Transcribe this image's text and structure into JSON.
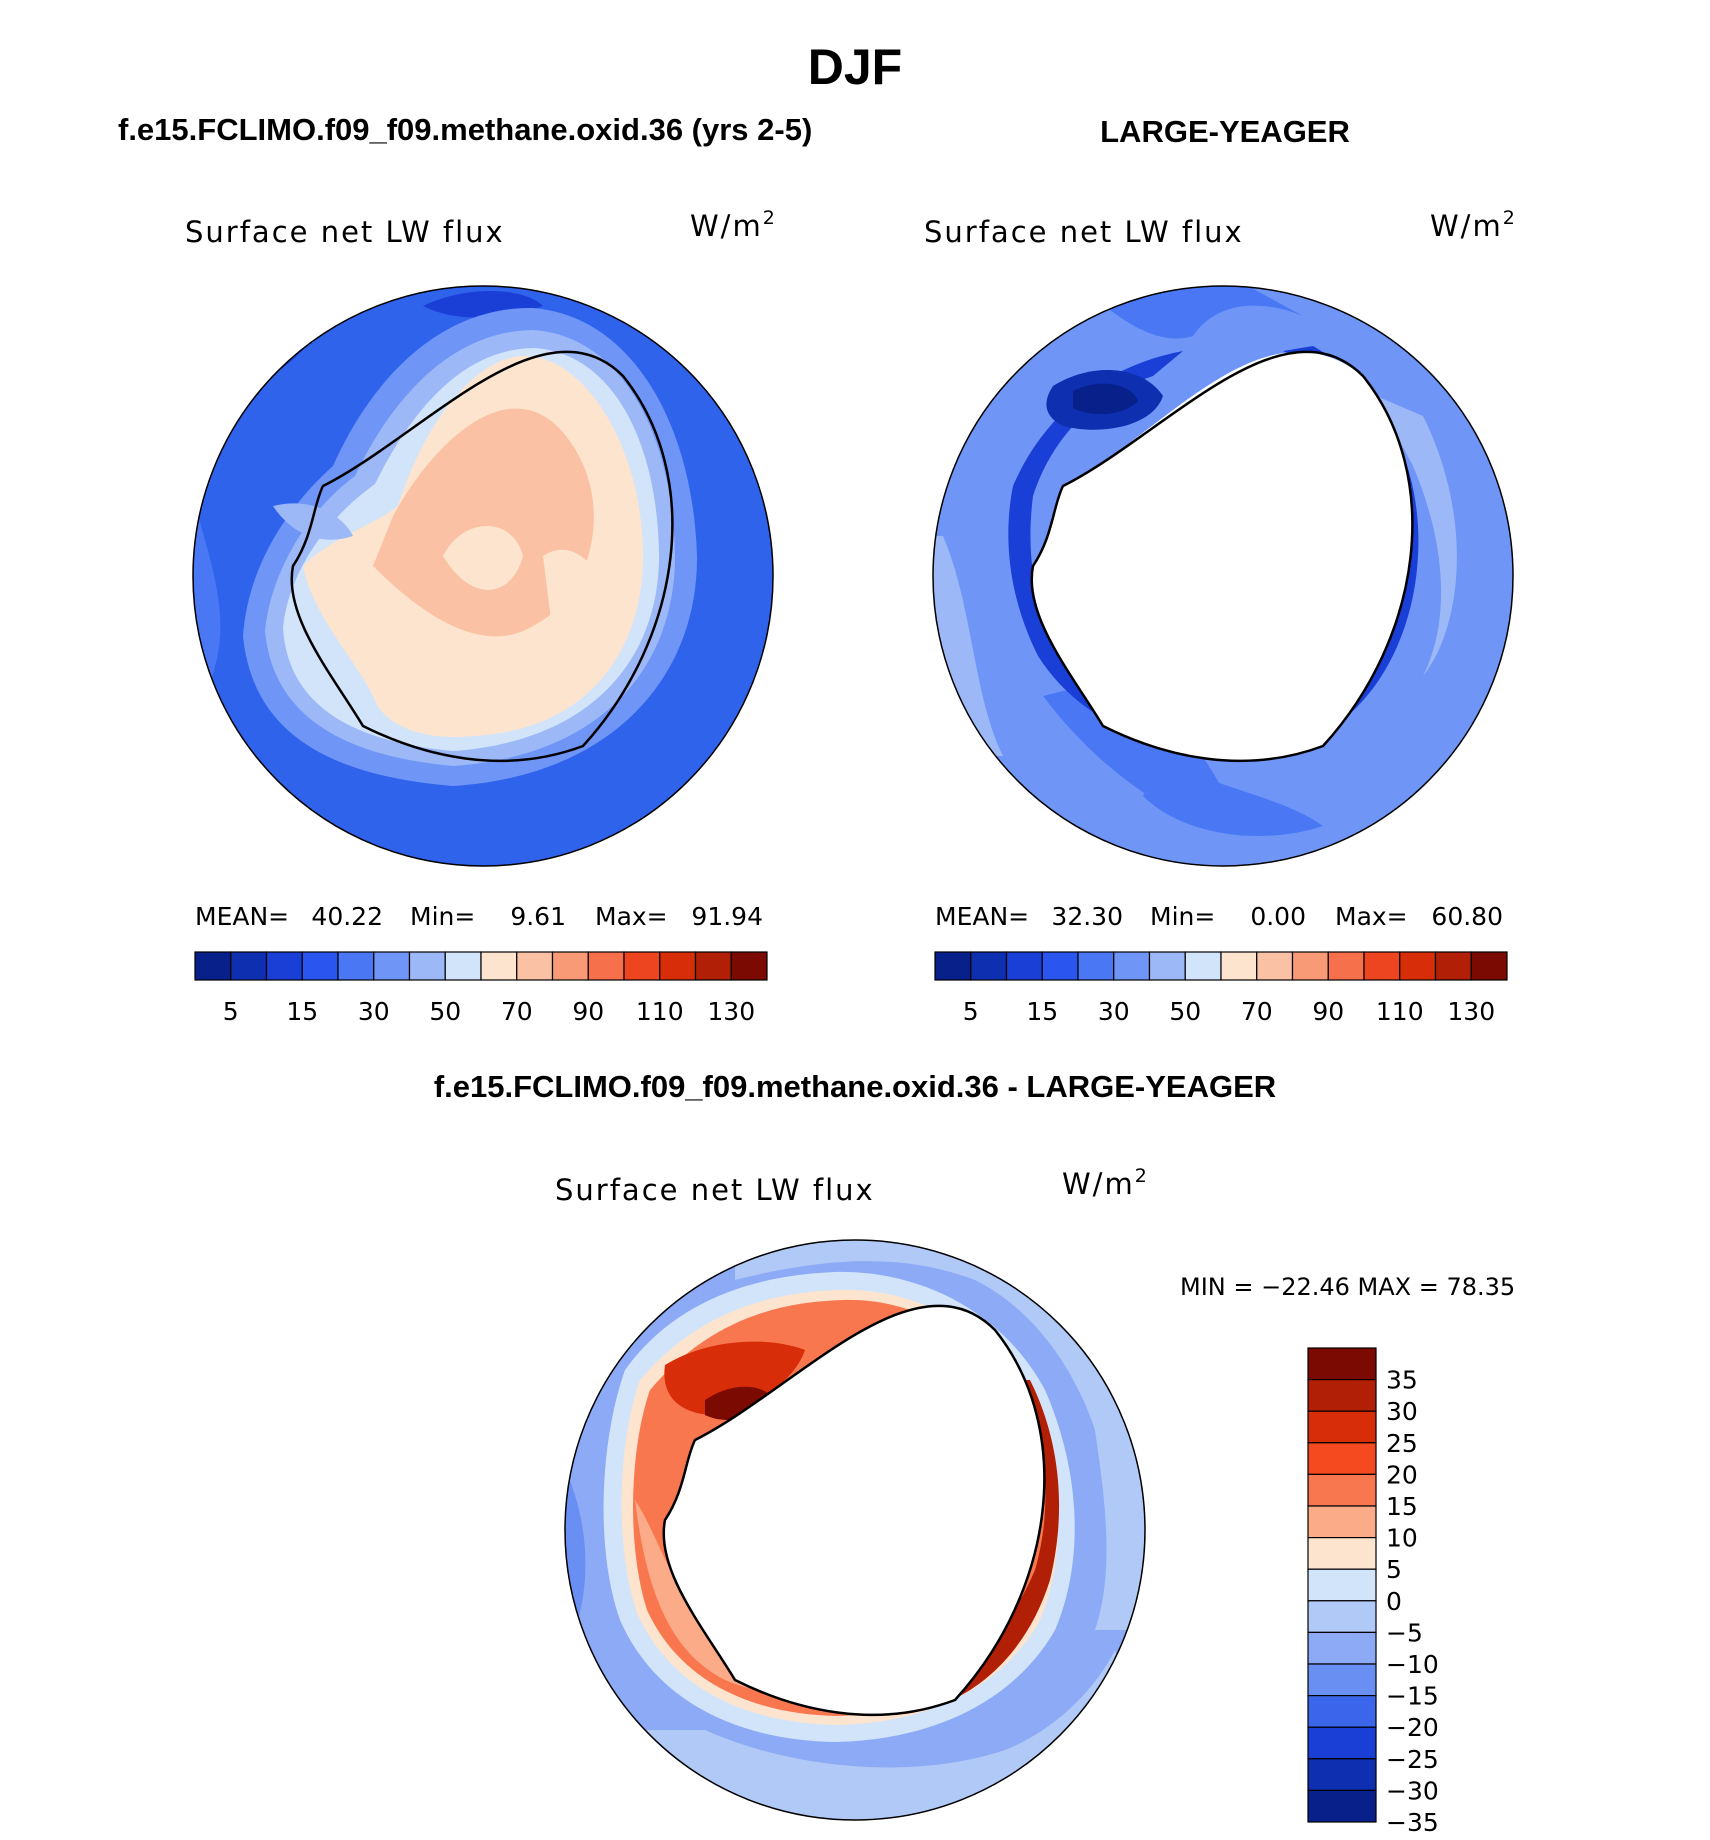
{
  "figure": {
    "season": "DJF",
    "case_title": "f.e15.FCLIMO.f09_f09.methane.oxid.36 (yrs 2-5)",
    "obs_title": "LARGE-YEAGER",
    "diff_title": "f.e15.FCLIMO.f09_f09.methane.oxid.36 - LARGE-YEAGER"
  },
  "panels": {
    "case": {
      "variable": "Surface net LW flux",
      "units": "W/m",
      "units_sup": "2",
      "stats": {
        "mean_label": "MEAN=",
        "mean": "40.22",
        "min_label": "Min=",
        "min": "9.61",
        "max_label": "Max=",
        "max": "91.94"
      }
    },
    "obs": {
      "variable": "Surface net LW flux",
      "units": "W/m",
      "units_sup": "2",
      "stats": {
        "mean_label": "MEAN=",
        "mean": "32.30",
        "min_label": "Min=",
        "min": "0.00",
        "max_label": "Max=",
        "max": "60.80"
      }
    },
    "diff": {
      "variable": "Surface net LW flux",
      "units": "W/m",
      "units_sup": "2",
      "minmax": "MIN = −22.46 MAX =   78.35"
    }
  },
  "chart_data": [
    {
      "type": "heatmap",
      "title": "f.e15.FCLIMO.f09_f09.methane.oxid.36 (yrs 2-5)",
      "subtitle": "Surface net LW flux",
      "units": "W/m2",
      "projection": "south polar stereographic",
      "mean": 40.22,
      "min": 9.61,
      "max": 91.94,
      "colorbar_labels": [
        "5",
        "15",
        "30",
        "50",
        "70",
        "90",
        "110",
        "130"
      ],
      "colorbar_colors": [
        "#08208a",
        "#0d2fb0",
        "#1a3fd6",
        "#2a56ef",
        "#4a78f5",
        "#6f96f7",
        "#9cb8f7",
        "#d2e4fa",
        "#fde4cf",
        "#fbc1a4",
        "#f99a76",
        "#f5704b",
        "#ee4521",
        "#d72d09",
        "#b11f06",
        "#7a0a02"
      ]
    },
    {
      "type": "heatmap",
      "title": "LARGE-YEAGER",
      "subtitle": "Surface net LW flux",
      "units": "W/m2",
      "projection": "south polar stereographic",
      "mean": 32.3,
      "min": 0.0,
      "max": 60.8,
      "colorbar_labels": [
        "5",
        "15",
        "30",
        "50",
        "70",
        "90",
        "110",
        "130"
      ],
      "colorbar_colors": [
        "#08208a",
        "#0d2fb0",
        "#1a3fd6",
        "#2a56ef",
        "#4a78f5",
        "#6f96f7",
        "#9cb8f7",
        "#d2e4fa",
        "#fde4cf",
        "#fbc1a4",
        "#f99a76",
        "#f5704b",
        "#ee4521",
        "#d72d09",
        "#b11f06",
        "#7a0a02"
      ]
    },
    {
      "type": "heatmap",
      "title": "f.e15.FCLIMO.f09_f09.methane.oxid.36 - LARGE-YEAGER",
      "subtitle": "Surface net LW flux",
      "units": "W/m2",
      "projection": "south polar stereographic",
      "min": -22.46,
      "max": 78.35,
      "colorbar_labels": [
        "35",
        "30",
        "25",
        "20",
        "15",
        "10",
        "5",
        "0",
        "−5",
        "−10",
        "−15",
        "−20",
        "−25",
        "−30",
        "−35"
      ],
      "colorbar_colors": [
        "#7a0a02",
        "#b11f06",
        "#d72d09",
        "#f5491f",
        "#f9774f",
        "#fbab88",
        "#fde4cf",
        "#d2e4fa",
        "#b1c9f7",
        "#8caaf6",
        "#6a8ff3",
        "#3b66ec",
        "#1a3fd6",
        "#0d2fb0",
        "#08208a"
      ]
    }
  ]
}
